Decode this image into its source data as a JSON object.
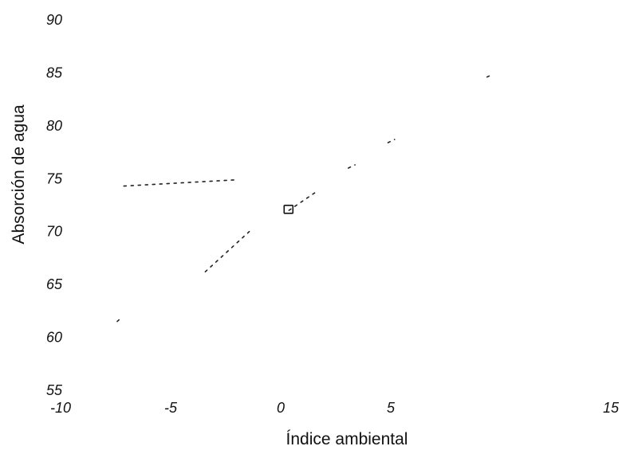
{
  "chart_data": {
    "type": "line",
    "title": "",
    "xlabel": "Índice ambiental",
    "ylabel": "Absorción de agua",
    "xlim": [
      -10,
      15
    ],
    "ylim": [
      55,
      90
    ],
    "x_ticks": [
      -10,
      -5,
      0,
      5,
      15
    ],
    "y_ticks": [
      55,
      60,
      65,
      70,
      75,
      80,
      85,
      90
    ],
    "x_tick_labels": [
      "-10",
      "-5",
      "0",
      "5",
      "15"
    ],
    "y_tick_labels": [
      "55",
      "60",
      "65",
      "70",
      "75",
      "80",
      "85",
      "90"
    ],
    "grid": false,
    "legend": "none",
    "series": [
      {
        "style": "dashed",
        "x": [
          -7.2,
          -2.0
        ],
        "y": [
          74.3,
          74.9
        ]
      },
      {
        "style": "dashed",
        "x": [
          -3.5,
          -1.5
        ],
        "y": [
          66.2,
          70.0
        ]
      },
      {
        "style": "dashed",
        "x": [
          0.3,
          1.5
        ],
        "y": [
          72.0,
          73.7
        ]
      },
      {
        "style": "dashed",
        "x": [
          3.0,
          3.3
        ],
        "y": [
          76.0,
          76.3
        ]
      },
      {
        "style": "dashed",
        "x": [
          4.8,
          5.1
        ],
        "y": [
          78.4,
          78.7
        ]
      },
      {
        "style": "dashed",
        "x": [
          9.3,
          9.5
        ],
        "y": [
          84.6,
          84.8
        ]
      },
      {
        "style": "dashed",
        "x": [
          -7.5,
          -7.4
        ],
        "y": [
          61.5,
          61.7
        ]
      }
    ],
    "markers": [
      {
        "symbol": "square",
        "x": 0.3,
        "y": 72.1
      }
    ]
  }
}
